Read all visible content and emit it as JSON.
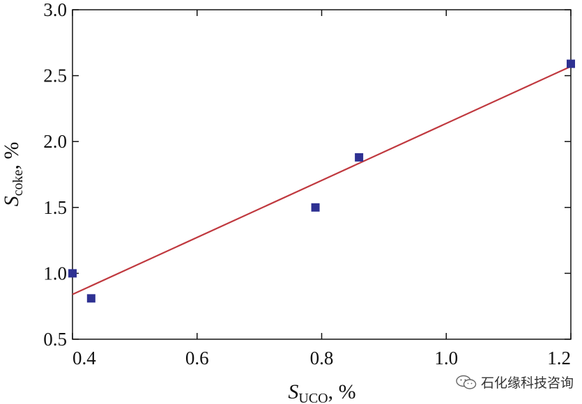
{
  "chart_data": {
    "type": "scatter",
    "x_label": {
      "symbol": "S",
      "subscript": "UCO",
      "suffix": ", %"
    },
    "y_label": {
      "symbol": "S",
      "subscript": "coke",
      "suffix": ", %"
    },
    "xlim": [
      0.4,
      1.2
    ],
    "ylim": [
      0.5,
      3.0
    ],
    "xticks": [
      "0.4",
      "0.6",
      "0.8",
      "1.0",
      "1.2"
    ],
    "yticks": [
      "0.5",
      "1.0",
      "1.5",
      "2.0",
      "2.5",
      "3.0"
    ],
    "grid": false,
    "series": [
      {
        "type": "scatter",
        "marker": "square",
        "color": "#2e3192",
        "points": [
          {
            "x": 0.4,
            "y": 1.0
          },
          {
            "x": 0.43,
            "y": 0.81
          },
          {
            "x": 0.79,
            "y": 1.5
          },
          {
            "x": 0.86,
            "y": 1.88
          },
          {
            "x": 1.2,
            "y": 2.59
          }
        ]
      },
      {
        "type": "line",
        "color": "#c0393f",
        "points": [
          {
            "x": 0.4,
            "y": 0.84
          },
          {
            "x": 1.2,
            "y": 2.57
          }
        ]
      }
    ]
  },
  "watermark": {
    "text": "石化缘科技咨询",
    "icon": "wechat-icon"
  }
}
